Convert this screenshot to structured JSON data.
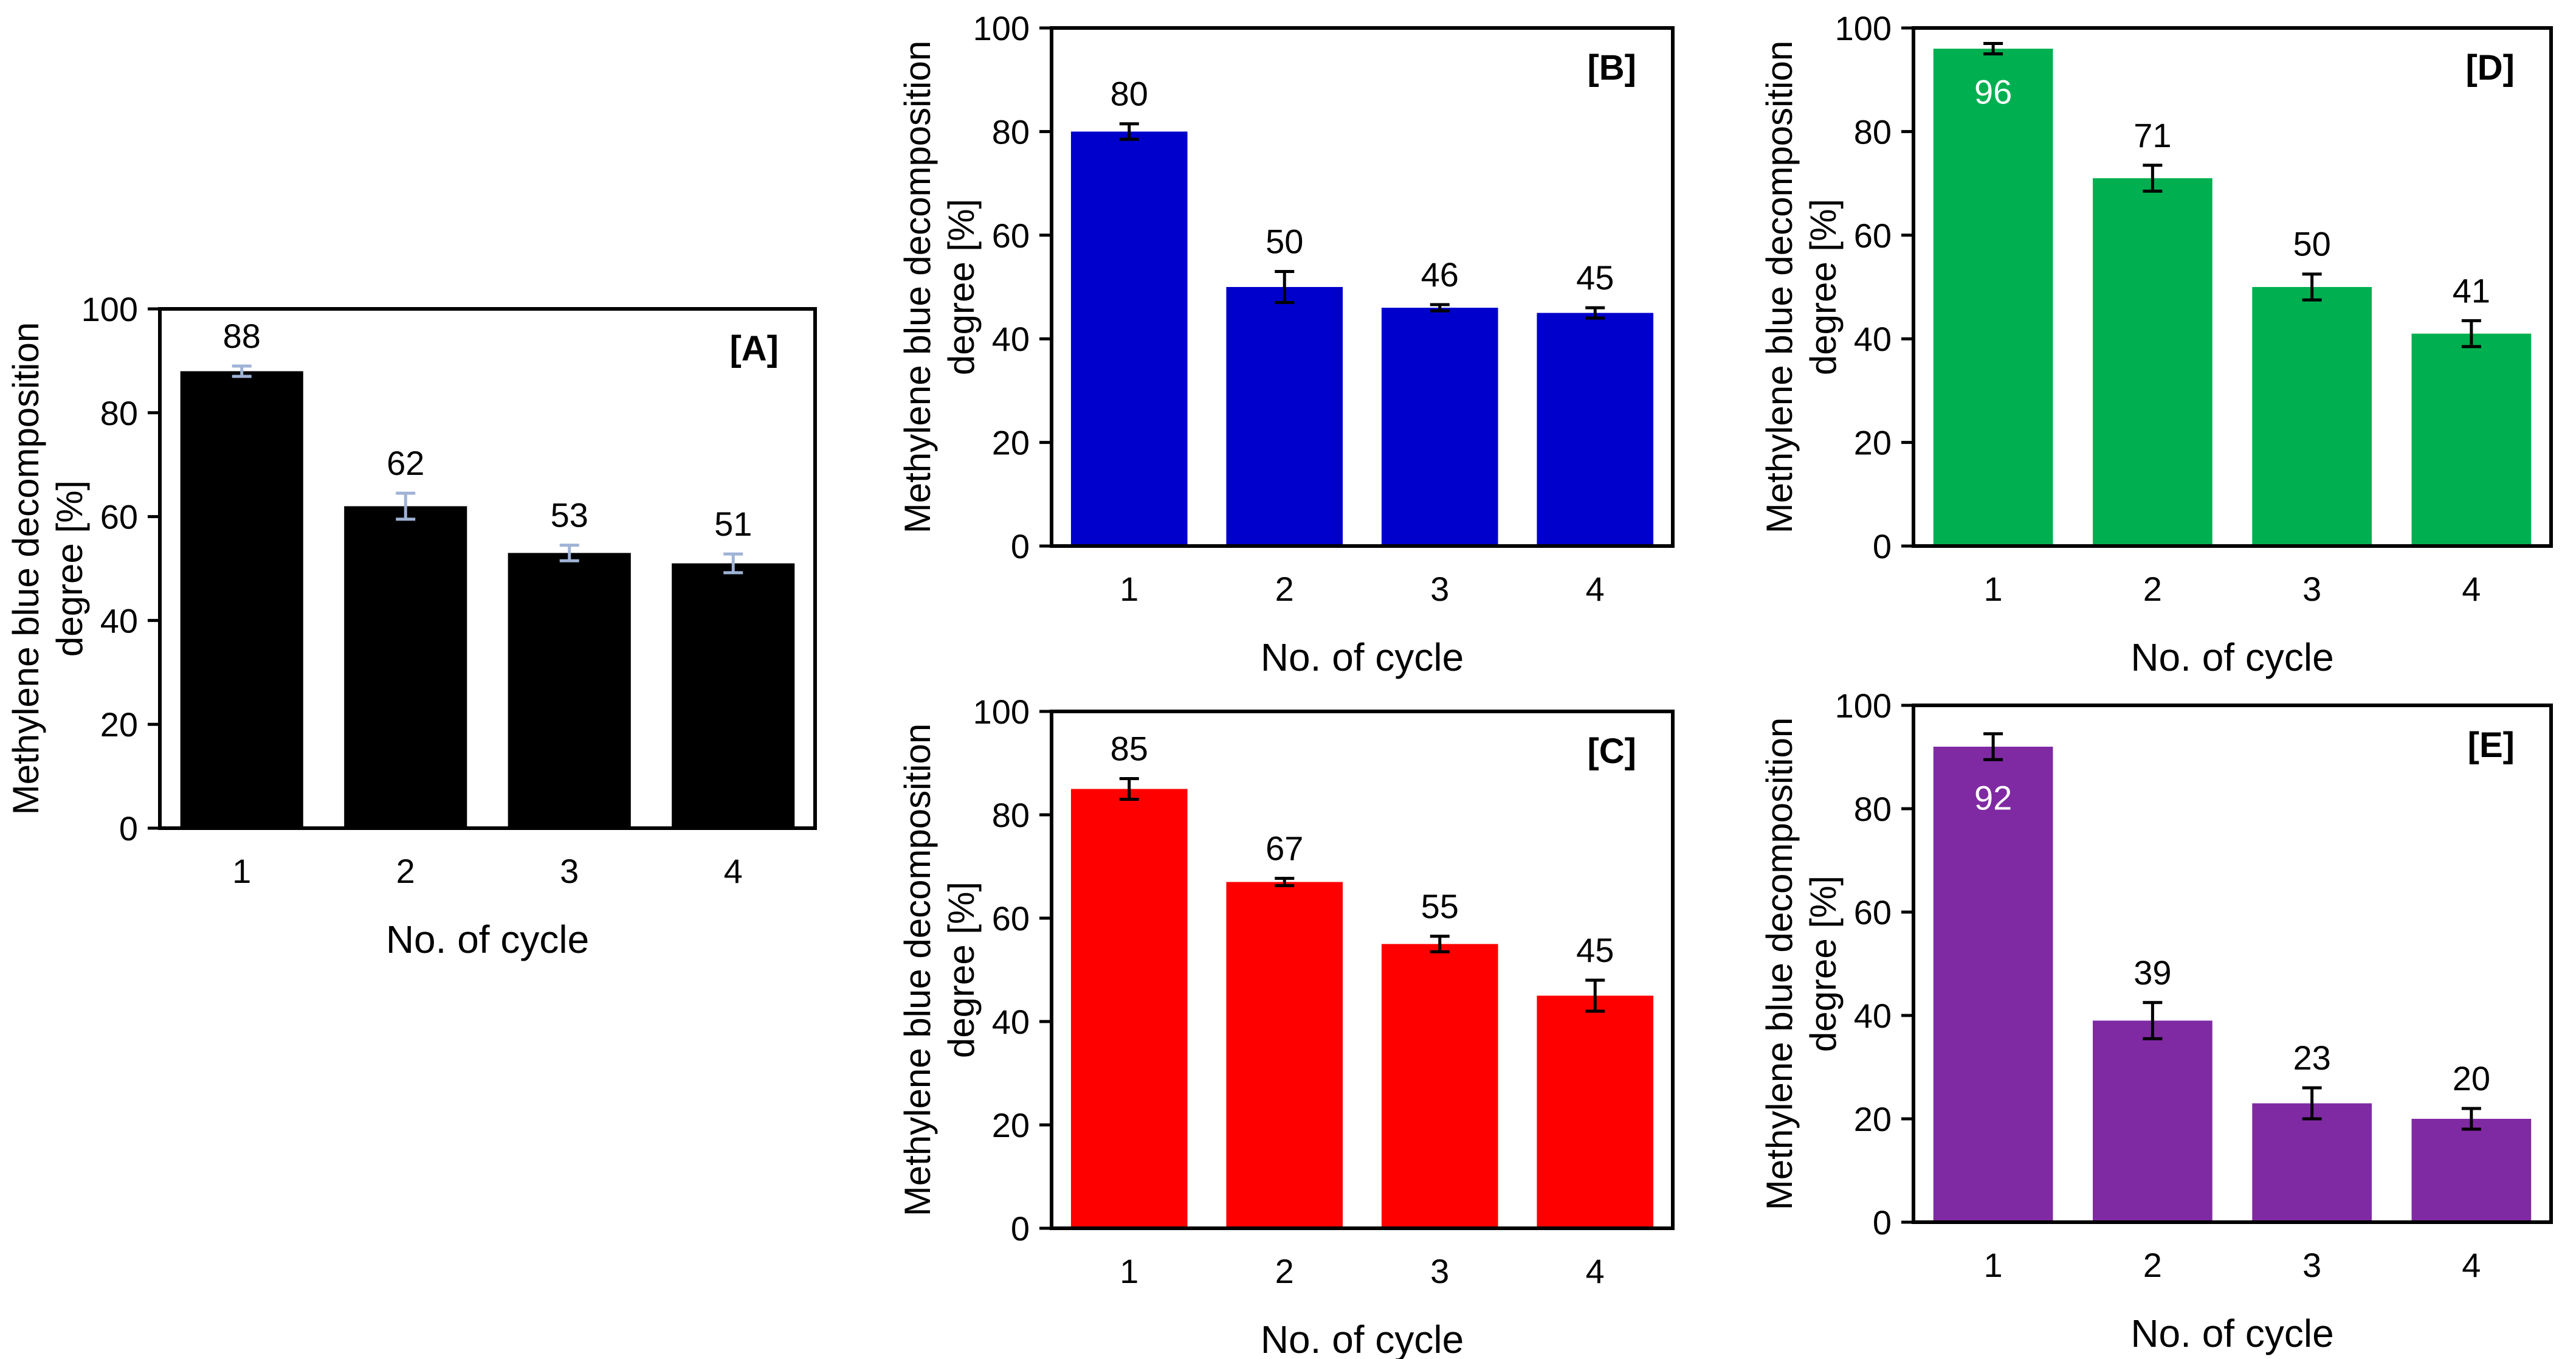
{
  "chart_data": [
    {
      "id": "A",
      "type": "bar",
      "panel_label": "[A]",
      "categories": [
        "1",
        "2",
        "3",
        "4"
      ],
      "values": [
        88,
        62,
        53,
        51
      ],
      "error": [
        1,
        2.5,
        1.5,
        1.8
      ],
      "data_labels": [
        "88",
        "62",
        "53",
        "51"
      ],
      "data_label_inside": [
        false,
        false,
        false,
        false
      ],
      "xlabel": "No. of cycle",
      "ylabel_line1": "Methylene blue decomposition",
      "ylabel_line2": "degree [%]",
      "ylim": [
        0,
        100
      ],
      "yticks": [
        0,
        20,
        40,
        60,
        80,
        100
      ],
      "ytick_labels": [
        "0",
        "20",
        "40",
        "60",
        "80",
        "100"
      ],
      "bar_color": "#000000",
      "errorbar_color": "#9fb3d6"
    },
    {
      "id": "B",
      "type": "bar",
      "panel_label": "[B]",
      "categories": [
        "1",
        "2",
        "3",
        "4"
      ],
      "values": [
        80,
        50,
        46,
        45
      ],
      "error": [
        1.5,
        3,
        0.6,
        1
      ],
      "data_labels": [
        "80",
        "50",
        "46",
        "45"
      ],
      "data_label_inside": [
        false,
        false,
        false,
        false
      ],
      "xlabel": "No. of cycle",
      "ylabel_line1": "Methylene blue decomposition",
      "ylabel_line2": "degree [%]",
      "ylim": [
        0,
        100
      ],
      "yticks": [
        0,
        20,
        40,
        60,
        80,
        100
      ],
      "ytick_labels": [
        "0",
        "20",
        "40",
        "60",
        "80",
        "100"
      ],
      "bar_color": "#0000cc",
      "errorbar_color": "#000000"
    },
    {
      "id": "C",
      "type": "bar",
      "panel_label": "[C]",
      "categories": [
        "1",
        "2",
        "3",
        "4"
      ],
      "values": [
        85,
        67,
        55,
        45
      ],
      "error": [
        2,
        0.7,
        1.5,
        3
      ],
      "data_labels": [
        "85",
        "67",
        "55",
        "45"
      ],
      "data_label_inside": [
        false,
        false,
        false,
        false
      ],
      "xlabel": "No. of cycle",
      "ylabel_line1": "Methylene blue decomposition",
      "ylabel_line2": "degree [%]",
      "ylim": [
        0,
        100
      ],
      "yticks": [
        0,
        20,
        40,
        60,
        80,
        100
      ],
      "ytick_labels": [
        "0",
        "20",
        "40",
        "60",
        "80",
        "100"
      ],
      "bar_color": "#ff0000",
      "errorbar_color": "#000000"
    },
    {
      "id": "D",
      "type": "bar",
      "panel_label": "[D]",
      "categories": [
        "1",
        "2",
        "3",
        "4"
      ],
      "values": [
        96,
        71,
        50,
        41
      ],
      "error": [
        1,
        2.5,
        2.5,
        2.5
      ],
      "data_labels": [
        "96",
        "71",
        "50",
        "41"
      ],
      "data_label_inside": [
        true,
        false,
        false,
        false
      ],
      "xlabel": "No. of cycle",
      "ylabel_line1": "Methylene blue decomposition",
      "ylabel_line2": "degree [%]",
      "ylim": [
        0,
        100
      ],
      "yticks": [
        0,
        20,
        40,
        60,
        80,
        100
      ],
      "ytick_labels": [
        "0",
        "20",
        "40",
        "60",
        "80",
        "100"
      ],
      "bar_color": "#00b050",
      "errorbar_color": "#000000"
    },
    {
      "id": "E",
      "type": "bar",
      "panel_label": "[E]",
      "categories": [
        "1",
        "2",
        "3",
        "4"
      ],
      "values": [
        92,
        39,
        23,
        20
      ],
      "error": [
        2.5,
        3.5,
        3,
        2
      ],
      "data_labels": [
        "92",
        "39",
        "23",
        "20"
      ],
      "data_label_inside": [
        true,
        false,
        false,
        false
      ],
      "xlabel": "No. of cycle",
      "ylabel_line1": "Methylene blue decomposition",
      "ylabel_line2": "degree [%]",
      "ylim": [
        0,
        100
      ],
      "yticks": [
        0,
        20,
        40,
        60,
        80,
        100
      ],
      "ytick_labels": [
        "0",
        "20",
        "40",
        "60",
        "80",
        "100"
      ],
      "bar_color": "#7f2aa3",
      "errorbar_color": "#000000"
    }
  ]
}
